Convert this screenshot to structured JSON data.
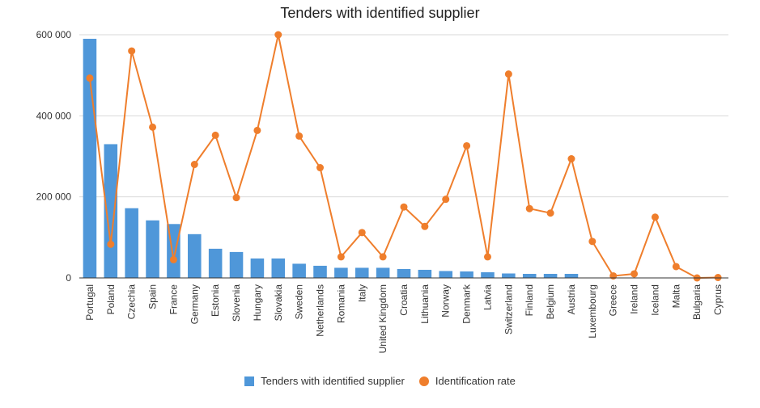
{
  "chart_data": {
    "type": "bar",
    "title": "Tenders with identified supplier",
    "categories": [
      "Portugal",
      "Poland",
      "Czechia",
      "Spain",
      "France",
      "Germany",
      "Estonia",
      "Slovenia",
      "Hungary",
      "Slovakia",
      "Sweden",
      "Netherlands",
      "Romania",
      "Italy",
      "United Kingdom",
      "Croatia",
      "Lithuania",
      "Norway",
      "Denmark",
      "Latvia",
      "Switzerland",
      "Finland",
      "Belgium",
      "Austria",
      "Luxembourg",
      "Greece",
      "Ireland",
      "Iceland",
      "Malta",
      "Bulgaria",
      "Cyprus"
    ],
    "ylim": [
      0,
      600000
    ],
    "yticks": [
      "0",
      "200 000",
      "400 000",
      "600 000"
    ],
    "ytick_values": [
      0,
      200000,
      400000,
      600000
    ],
    "grid": true,
    "legend_position": "bottom",
    "series": [
      {
        "name": "Tenders with identified supplier",
        "type": "bar",
        "color": "#4f97d9",
        "values": [
          590000,
          330000,
          172000,
          142000,
          133000,
          108000,
          72000,
          64000,
          48000,
          48000,
          35000,
          30000,
          25000,
          25000,
          25000,
          22000,
          20000,
          17000,
          16000,
          14000,
          11000,
          10000,
          10000,
          10000,
          1000,
          0,
          0,
          0,
          0,
          0,
          0
        ]
      },
      {
        "name": "Identification rate",
        "type": "line",
        "color": "#ef7e2c",
        "values": [
          493000,
          83000,
          560000,
          372000,
          45000,
          280000,
          352000,
          198000,
          364000,
          600000,
          350000,
          272000,
          52000,
          112000,
          52000,
          175000,
          127000,
          194000,
          326000,
          52000,
          503000,
          171000,
          160000,
          294000,
          90000,
          5000,
          10000,
          150000,
          28000,
          0,
          1000
        ]
      }
    ]
  }
}
